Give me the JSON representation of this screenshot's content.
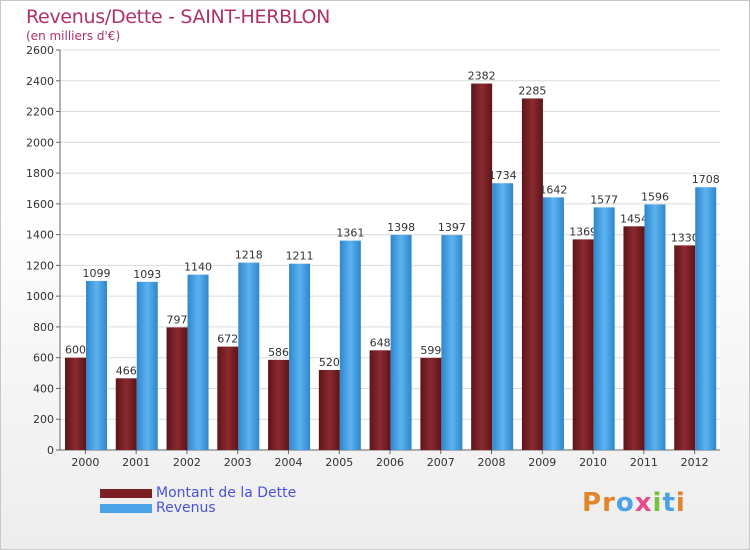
{
  "header": {
    "title": "Revenus/Dette - SAINT-HERBLON",
    "subtitle": "(en milliers d'€)"
  },
  "colors": {
    "dette": "#7b1f24",
    "revenus": "#4aa3e6",
    "title": "#b0306a",
    "legend_text": "#4a55d6"
  },
  "chart_data": {
    "type": "bar",
    "title": "Revenus/Dette - SAINT-HERBLON",
    "subtitle": "(en milliers d'€)",
    "categories": [
      "2000",
      "2001",
      "2002",
      "2003",
      "2004",
      "2005",
      "2006",
      "2007",
      "2008",
      "2009",
      "2010",
      "2011",
      "2012"
    ],
    "series": [
      {
        "name": "Montant de la Dette",
        "values": [
          600,
          466,
          797,
          672,
          586,
          520,
          648,
          599,
          2382,
          2285,
          1369,
          1454,
          1330
        ]
      },
      {
        "name": "Revenus",
        "values": [
          1099,
          1093,
          1140,
          1218,
          1211,
          1361,
          1398,
          1397,
          1734,
          1642,
          1577,
          1596,
          1708
        ]
      }
    ],
    "data_labels": [
      [
        "600",
        "466",
        "797",
        "672",
        "586",
        "520",
        "648",
        "599",
        "2382",
        "2285",
        "1369",
        "1454",
        "1330"
      ],
      [
        "1099",
        "1093",
        "1140",
        "1218",
        "1211",
        "1361",
        "1398",
        "1397",
        "1734",
        "1642",
        "1577",
        "1596",
        "1708"
      ]
    ],
    "yticks": [
      0,
      200,
      400,
      600,
      800,
      1000,
      1200,
      1400,
      1600,
      1800,
      2000,
      2200,
      2400,
      2600
    ],
    "ylim": [
      0,
      2600
    ],
    "grid": true,
    "legend": "bottom-left"
  },
  "legend": {
    "items": [
      {
        "label": "Montant de la Dette"
      },
      {
        "label": "Revenus"
      }
    ]
  },
  "logo": {
    "letters": [
      "P",
      "r",
      "o",
      "x",
      "i",
      "t",
      "i"
    ]
  }
}
